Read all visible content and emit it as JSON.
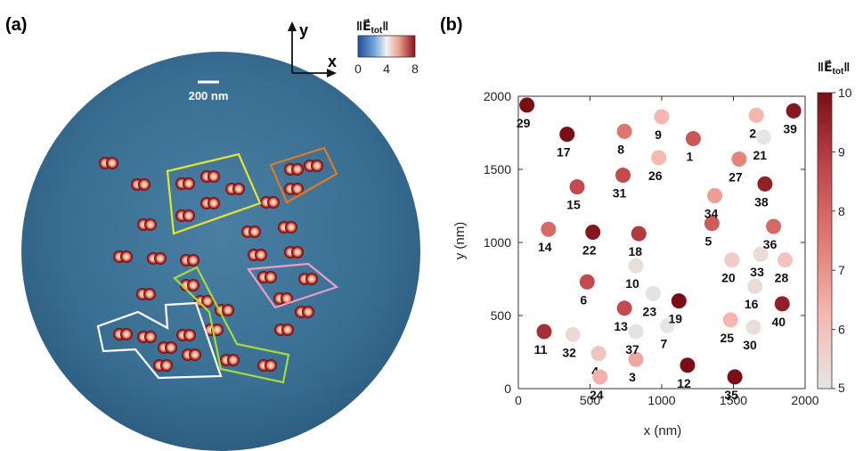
{
  "panel_a": {
    "label": "(a)",
    "scale_bar_label": "200 nm",
    "axis_y_label": "y",
    "axis_x_label": "x",
    "colorbar": {
      "title_main": "‖E⃗",
      "title_sub": "tot",
      "title_end": "‖",
      "ticks": [
        "0",
        "4",
        "8"
      ],
      "colors": [
        "#1f4e9c",
        "#6fa3d6",
        "#f2f2f2",
        "#e7a08c",
        "#8e0f1c"
      ]
    },
    "background_color": "#3a6f94"
  },
  "panel_b": {
    "label": "(b)",
    "colorbar": {
      "title_main": "‖E⃗",
      "title_sub": "tot",
      "title_end": "‖",
      "ticks": [
        "5",
        "6",
        "7",
        "8",
        "9",
        "10"
      ],
      "min": 5,
      "max": 10,
      "colors": [
        "#e6e6e6",
        "#f5b8b0",
        "#e07a73",
        "#c0444b",
        "#7a0d15"
      ]
    }
  },
  "chart_data": {
    "type": "scatter",
    "title": "",
    "xlabel": "x (nm)",
    "ylabel": "y (nm)",
    "xlim": [
      0,
      2000
    ],
    "ylim": [
      0,
      2000
    ],
    "xticks": [
      "0",
      "500",
      "1000",
      "1500",
      "2000"
    ],
    "yticks": [
      "0",
      "500",
      "1000",
      "1500",
      "2000"
    ],
    "color_label": "‖E⃗tot‖",
    "points": [
      {
        "id": "1",
        "x": 1220,
        "y": 1710,
        "v": 8.3
      },
      {
        "id": "2",
        "x": 1660,
        "y": 1870,
        "v": 6.3
      },
      {
        "id": "3",
        "x": 820,
        "y": 200,
        "v": 6.6
      },
      {
        "id": "4",
        "x": 560,
        "y": 240,
        "v": 5.9
      },
      {
        "id": "5",
        "x": 1350,
        "y": 1130,
        "v": 8.2
      },
      {
        "id": "6",
        "x": 480,
        "y": 730,
        "v": 8.6
      },
      {
        "id": "7",
        "x": 1040,
        "y": 430,
        "v": 5.0
      },
      {
        "id": "8",
        "x": 740,
        "y": 1760,
        "v": 7.6
      },
      {
        "id": "9",
        "x": 1000,
        "y": 1860,
        "v": 6.3
      },
      {
        "id": "10",
        "x": 820,
        "y": 840,
        "v": 5.2
      },
      {
        "id": "11",
        "x": 180,
        "y": 390,
        "v": 9.2
      },
      {
        "id": "12",
        "x": 1180,
        "y": 160,
        "v": 10.0
      },
      {
        "id": "13",
        "x": 740,
        "y": 550,
        "v": 8.6
      },
      {
        "id": "14",
        "x": 210,
        "y": 1090,
        "v": 7.9
      },
      {
        "id": "15",
        "x": 410,
        "y": 1380,
        "v": 8.6
      },
      {
        "id": "16",
        "x": 1650,
        "y": 700,
        "v": 5.3
      },
      {
        "id": "17",
        "x": 340,
        "y": 1740,
        "v": 10.0
      },
      {
        "id": "18",
        "x": 840,
        "y": 1060,
        "v": 9.0
      },
      {
        "id": "19",
        "x": 1120,
        "y": 600,
        "v": 10.0
      },
      {
        "id": "20",
        "x": 1490,
        "y": 880,
        "v": 5.7
      },
      {
        "id": "21",
        "x": 1710,
        "y": 1720,
        "v": 5.0
      },
      {
        "id": "22",
        "x": 520,
        "y": 1070,
        "v": 9.8
      },
      {
        "id": "23",
        "x": 940,
        "y": 650,
        "v": 5.1
      },
      {
        "id": "24",
        "x": 570,
        "y": 80,
        "v": 6.4
      },
      {
        "id": "25",
        "x": 1480,
        "y": 470,
        "v": 6.3
      },
      {
        "id": "26",
        "x": 980,
        "y": 1580,
        "v": 6.2
      },
      {
        "id": "27",
        "x": 1540,
        "y": 1570,
        "v": 7.3
      },
      {
        "id": "28",
        "x": 1860,
        "y": 880,
        "v": 5.9
      },
      {
        "id": "29",
        "x": 60,
        "y": 1940,
        "v": 10.0
      },
      {
        "id": "30",
        "x": 1640,
        "y": 420,
        "v": 5.2
      },
      {
        "id": "31",
        "x": 730,
        "y": 1460,
        "v": 8.6
      },
      {
        "id": "32",
        "x": 380,
        "y": 370,
        "v": 5.3
      },
      {
        "id": "33",
        "x": 1690,
        "y": 920,
        "v": 5.3
      },
      {
        "id": "34",
        "x": 1370,
        "y": 1320,
        "v": 6.8
      },
      {
        "id": "35",
        "x": 1510,
        "y": 80,
        "v": 10.0
      },
      {
        "id": "36",
        "x": 1780,
        "y": 1110,
        "v": 7.9
      },
      {
        "id": "37",
        "x": 820,
        "y": 390,
        "v": 5.1
      },
      {
        "id": "38",
        "x": 1720,
        "y": 1400,
        "v": 9.6
      },
      {
        "id": "39",
        "x": 1920,
        "y": 1900,
        "v": 9.8
      },
      {
        "id": "40",
        "x": 1840,
        "y": 580,
        "v": 9.6
      }
    ],
    "grid": false,
    "legend": "colorbar-right"
  }
}
